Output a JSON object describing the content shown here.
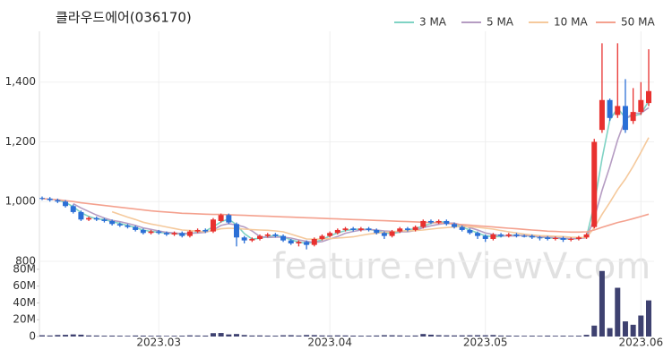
{
  "chart_data": {
    "type": "candlestick",
    "title": "클라우드에어(036170)",
    "watermark": "feature.enViewV.com",
    "categories": [
      null,
      null,
      null,
      null,
      null,
      null,
      null,
      null,
      null,
      null,
      null,
      null,
      null,
      null,
      null,
      "2023.03",
      null,
      null,
      null,
      null,
      null,
      null,
      null,
      null,
      null,
      null,
      null,
      null,
      null,
      null,
      null,
      null,
      null,
      null,
      null,
      null,
      null,
      "2023.04",
      null,
      null,
      null,
      null,
      null,
      null,
      null,
      null,
      null,
      null,
      null,
      null,
      null,
      null,
      null,
      null,
      null,
      null,
      null,
      "2023.05",
      null,
      null,
      null,
      null,
      null,
      null,
      null,
      null,
      null,
      null,
      null,
      null,
      null,
      null,
      null,
      null,
      null,
      null,
      null,
      "2023.06",
      null
    ],
    "open": [
      1012,
      1010,
      1005,
      1000,
      985,
      965,
      940,
      945,
      940,
      935,
      925,
      920,
      915,
      905,
      895,
      900,
      895,
      890,
      895,
      885,
      900,
      905,
      900,
      935,
      955,
      925,
      880,
      870,
      875,
      885,
      890,
      885,
      870,
      860,
      865,
      855,
      875,
      885,
      895,
      905,
      910,
      905,
      910,
      905,
      895,
      885,
      900,
      910,
      905,
      915,
      935,
      930,
      935,
      925,
      915,
      905,
      895,
      885,
      875,
      890,
      885,
      890,
      885,
      885,
      880,
      880,
      875,
      878,
      872,
      875,
      880,
      915,
      1240,
      1340,
      1290,
      1320,
      1270,
      1300,
      1330
    ],
    "high": [
      1017,
      1015,
      1010,
      1005,
      990,
      970,
      950,
      950,
      945,
      940,
      930,
      925,
      920,
      910,
      905,
      905,
      900,
      900,
      900,
      905,
      910,
      910,
      945,
      960,
      960,
      930,
      885,
      880,
      890,
      895,
      895,
      890,
      875,
      870,
      870,
      880,
      890,
      900,
      910,
      915,
      915,
      915,
      915,
      910,
      900,
      905,
      915,
      915,
      920,
      940,
      940,
      940,
      940,
      930,
      920,
      910,
      900,
      890,
      895,
      895,
      895,
      895,
      890,
      890,
      885,
      885,
      883,
      883,
      880,
      885,
      895,
      1210,
      1530,
      1345,
      1530,
      1410,
      1380,
      1400,
      1510
    ],
    "low": [
      1005,
      1000,
      995,
      980,
      960,
      935,
      935,
      935,
      930,
      920,
      915,
      910,
      900,
      890,
      890,
      890,
      885,
      885,
      880,
      880,
      895,
      895,
      895,
      930,
      925,
      850,
      860,
      865,
      870,
      880,
      880,
      865,
      855,
      850,
      840,
      850,
      870,
      880,
      890,
      900,
      900,
      900,
      900,
      890,
      875,
      880,
      895,
      900,
      900,
      910,
      925,
      925,
      920,
      910,
      900,
      890,
      875,
      865,
      870,
      880,
      880,
      880,
      880,
      875,
      870,
      870,
      870,
      865,
      867,
      870,
      875,
      910,
      1230,
      1270,
      1280,
      1230,
      1260,
      1290,
      1320
    ],
    "close": [
      1010,
      1005,
      1000,
      985,
      965,
      940,
      945,
      940,
      935,
      925,
      920,
      915,
      905,
      895,
      900,
      895,
      890,
      895,
      885,
      900,
      905,
      900,
      940,
      955,
      930,
      880,
      870,
      875,
      885,
      890,
      885,
      870,
      860,
      865,
      855,
      875,
      885,
      895,
      905,
      910,
      905,
      910,
      905,
      895,
      885,
      900,
      910,
      905,
      915,
      935,
      930,
      935,
      925,
      915,
      905,
      895,
      885,
      875,
      890,
      885,
      890,
      885,
      885,
      880,
      880,
      875,
      878,
      872,
      875,
      880,
      890,
      1200,
      1340,
      1280,
      1320,
      1240,
      1300,
      1340,
      1370
    ],
    "up_color": "#e8312f",
    "down_color": "#2b6fd6",
    "ylim": [
      800,
      1570
    ],
    "yticks": [
      800,
      {
        "value": 1000,
        "label": "1,000"
      },
      {
        "value": 1200,
        "label": "1,200"
      },
      {
        "value": 1400,
        "label": "1,400"
      }
    ],
    "volume": {
      "color": "#3e4170",
      "values": [
        1500000,
        1200000,
        1800000,
        2000000,
        2500000,
        2200000,
        1300000,
        1200000,
        1000000,
        1100000,
        1000000,
        900000,
        1200000,
        1100000,
        900000,
        1000000,
        800000,
        900000,
        1000000,
        1400000,
        1200000,
        1100000,
        4000000,
        4200000,
        2500000,
        3000000,
        1800000,
        1200000,
        1300000,
        1100000,
        1000000,
        1500000,
        1600000,
        1200000,
        1800000,
        1700000,
        1300000,
        1200000,
        1400000,
        1300000,
        1100000,
        1000000,
        1000000,
        1200000,
        1600000,
        1500000,
        1300000,
        1000000,
        1200000,
        3000000,
        2200000,
        1600000,
        1400000,
        1300000,
        1400000,
        1500000,
        1600000,
        1500000,
        1800000,
        1200000,
        1100000,
        1000000,
        900000,
        1000000,
        900000,
        1100000,
        900000,
        1000000,
        900000,
        1000000,
        2000000,
        13000000,
        78000000,
        10000000,
        58000000,
        18000000,
        14000000,
        25000000,
        43000000
      ],
      "ylim": [
        0,
        82000000
      ],
      "yticks": [
        0,
        {
          "value": 20000000,
          "label": "20M"
        },
        {
          "value": 40000000,
          "label": "40M"
        },
        {
          "value": 60000000,
          "label": "60M"
        },
        {
          "value": 80000000,
          "label": "80M"
        }
      ]
    },
    "series": [
      {
        "name": "3 MA",
        "color": "#7fd3c4",
        "values": [
          null,
          null,
          1005,
          997,
          983,
          963,
          950,
          942,
          940,
          933,
          927,
          920,
          913,
          905,
          900,
          897,
          895,
          893,
          890,
          893,
          897,
          902,
          915,
          932,
          942,
          922,
          893,
          875,
          877,
          883,
          887,
          882,
          872,
          865,
          860,
          865,
          872,
          885,
          895,
          903,
          907,
          908,
          907,
          903,
          895,
          893,
          898,
          905,
          910,
          918,
          927,
          933,
          930,
          925,
          915,
          905,
          895,
          885,
          883,
          883,
          888,
          887,
          887,
          883,
          882,
          878,
          878,
          875,
          875,
          876,
          882,
          990,
          1143,
          1273,
          1313,
          1280,
          1287,
          1293,
          1337
        ]
      },
      {
        "name": "5 MA",
        "color": "#b59cc2",
        "values": [
          null,
          null,
          null,
          null,
          993,
          979,
          967,
          955,
          945,
          937,
          933,
          927,
          920,
          912,
          907,
          902,
          897,
          895,
          893,
          894,
          895,
          897,
          905,
          920,
          926,
          922,
          915,
          902,
          883,
          880,
          881,
          881,
          878,
          872,
          867,
          863,
          866,
          875,
          883,
          894,
          900,
          905,
          907,
          905,
          902,
          900,
          899,
          899,
          903,
          913,
          919,
          924,
          928,
          928,
          921,
          913,
          905,
          895,
          890,
          886,
          885,
          885,
          887,
          885,
          882,
          881,
          880,
          877,
          876,
          876,
          879,
          943,
          1037,
          1117,
          1206,
          1276,
          1296,
          1296,
          1314
        ]
      },
      {
        "name": "10 MA",
        "color": "#f5c99c",
        "values": [
          null,
          null,
          null,
          null,
          null,
          null,
          null,
          null,
          null,
          966,
          957,
          948,
          940,
          931,
          925,
          920,
          915,
          910,
          905,
          903,
          901,
          899,
          903,
          909,
          911,
          910,
          908,
          906,
          905,
          904,
          902,
          899,
          891,
          883,
          875,
          874,
          875,
          876,
          878,
          880,
          882,
          887,
          891,
          894,
          897,
          899,
          902,
          902,
          903,
          905,
          908,
          911,
          913,
          915,
          917,
          916,
          914,
          911,
          908,
          903,
          899,
          895,
          891,
          888,
          886,
          885,
          884,
          883,
          881,
          880,
          880,
          912,
          957,
          997,
          1040,
          1076,
          1118,
          1165,
          1214
        ]
      },
      {
        "name": "50 MA",
        "color": "#f4a18e",
        "values": [
          1010,
          1008,
          1006,
          1003,
          1000,
          996,
          993,
          990,
          987,
          984,
          981,
          978,
          975,
          972,
          969,
          967,
          965,
          963,
          961,
          960,
          959,
          958,
          957,
          957,
          956,
          955,
          954,
          953,
          952,
          951,
          950,
          949,
          948,
          947,
          946,
          945,
          944,
          943,
          942,
          941,
          940,
          939,
          938,
          937,
          936,
          935,
          934,
          933,
          932,
          931,
          930,
          929,
          927,
          925,
          923,
          921,
          919,
          917,
          915,
          913,
          911,
          909,
          907,
          905,
          903,
          901,
          900,
          899,
          898,
          898,
          899,
          905,
          914,
          922,
          930,
          936,
          943,
          950,
          958
        ]
      }
    ],
    "legend": "top-right",
    "grid": true
  }
}
